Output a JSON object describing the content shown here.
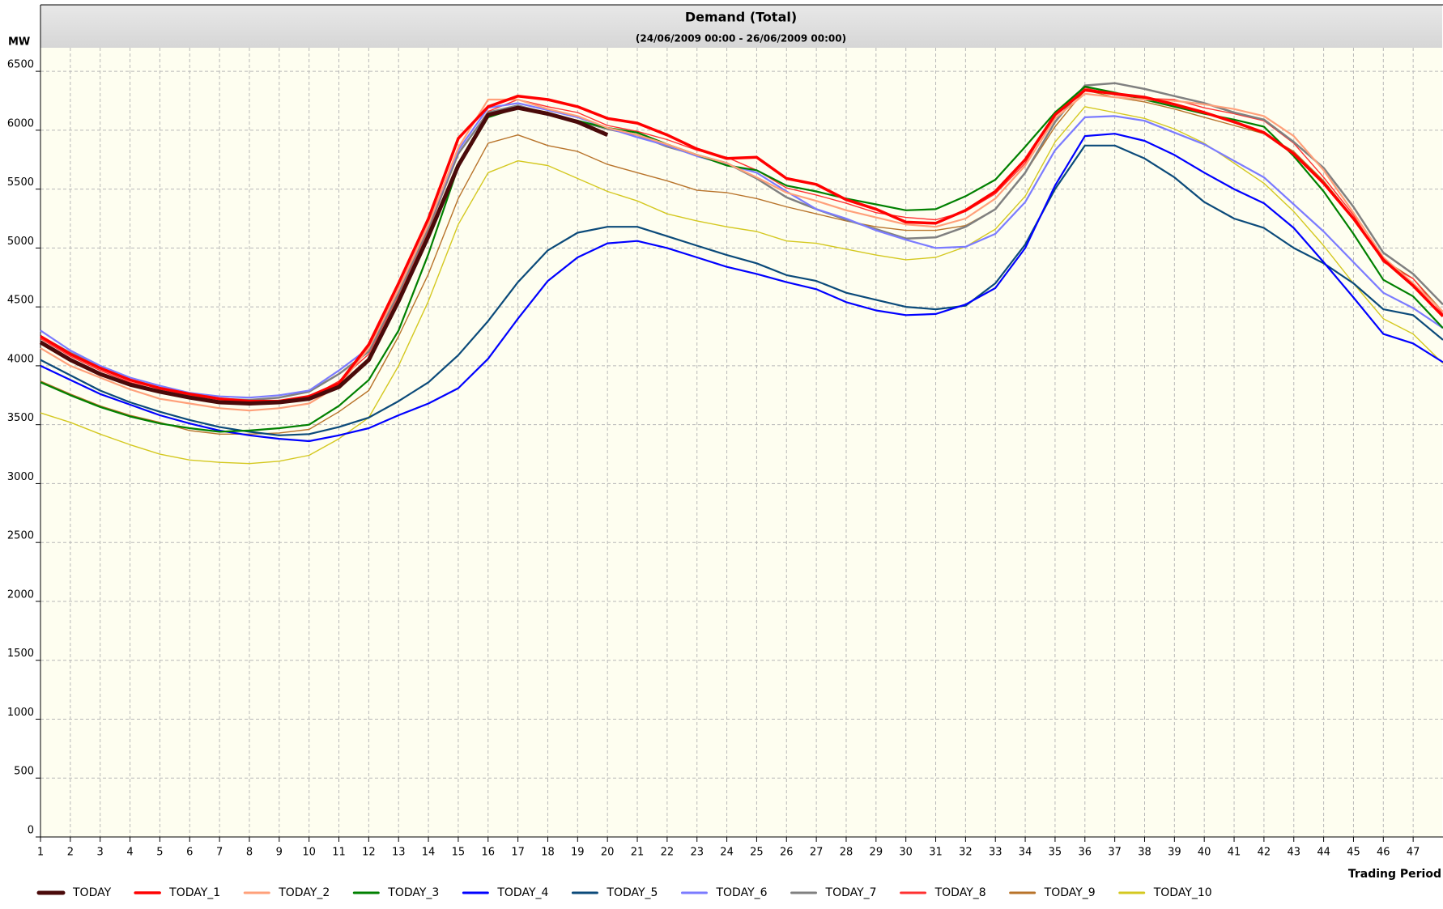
{
  "chart_data": {
    "type": "line",
    "title": "Demand (Total)",
    "subtitle": "(24/06/2009 00:00 - 26/06/2009 00:00)",
    "y_label": "MW",
    "x_label": "Trading Period",
    "x": [
      1,
      2,
      3,
      4,
      5,
      6,
      7,
      8,
      9,
      10,
      11,
      12,
      13,
      14,
      15,
      16,
      17,
      18,
      19,
      20,
      21,
      22,
      23,
      24,
      25,
      26,
      27,
      28,
      29,
      30,
      31,
      32,
      33,
      34,
      35,
      36,
      37,
      38,
      39,
      40,
      41,
      42,
      43,
      44,
      45,
      46,
      47,
      48
    ],
    "xlim": [
      1,
      48
    ],
    "xticks": [
      1,
      2,
      3,
      4,
      5,
      6,
      7,
      8,
      9,
      10,
      11,
      12,
      13,
      14,
      15,
      16,
      17,
      18,
      19,
      20,
      21,
      22,
      23,
      24,
      25,
      26,
      27,
      28,
      29,
      30,
      31,
      32,
      33,
      34,
      35,
      36,
      37,
      38,
      39,
      40,
      41,
      42,
      43,
      44,
      45,
      46,
      47
    ],
    "ylim": [
      0,
      6700
    ],
    "yticks": [
      0,
      500,
      1000,
      1500,
      2000,
      2500,
      3000,
      3500,
      4000,
      4500,
      5000,
      5500,
      6000,
      6500
    ],
    "grid": true,
    "series": [
      {
        "name": "TODAY",
        "color": "#4a0a0a",
        "line_width": 5,
        "values": [
          4200,
          4050,
          3930,
          3840,
          3780,
          3730,
          3690,
          3680,
          3690,
          3720,
          3820,
          4050,
          4550,
          5100,
          5700,
          6130,
          6190,
          6140,
          6070,
          5960,
          null,
          null,
          null,
          null,
          null,
          null,
          null,
          null,
          null,
          null,
          null,
          null,
          null,
          null,
          null,
          null,
          null,
          null,
          null,
          null,
          null,
          null,
          null,
          null,
          null,
          null,
          null,
          null
        ]
      },
      {
        "name": "TODAY_1",
        "color": "#ff0000",
        "line_width": 3.5,
        "values": [
          4250,
          4100,
          3980,
          3880,
          3810,
          3760,
          3720,
          3700,
          3700,
          3740,
          3850,
          4180,
          4700,
          5250,
          5930,
          6200,
          6290,
          6260,
          6200,
          6100,
          6060,
          5960,
          5840,
          5760,
          5770,
          5590,
          5540,
          5410,
          5330,
          5220,
          5210,
          5320,
          5480,
          5750,
          6130,
          6340,
          6310,
          6280,
          6220,
          6150,
          6070,
          5980,
          5800,
          5550,
          5250,
          4900,
          4680,
          4420
        ]
      },
      {
        "name": "TODAY_2",
        "color": "#ffa07a",
        "line_width": 2.2,
        "values": [
          4150,
          4000,
          3900,
          3800,
          3720,
          3680,
          3640,
          3620,
          3640,
          3680,
          3830,
          4150,
          4650,
          5200,
          5850,
          6260,
          6260,
          6180,
          6120,
          6020,
          5960,
          5880,
          5790,
          5720,
          5600,
          5470,
          5400,
          5320,
          5260,
          5200,
          5180,
          5250,
          5420,
          5700,
          6100,
          6310,
          6280,
          6260,
          6250,
          6220,
          6180,
          6120,
          5950,
          5660,
          5300,
          4920,
          4700,
          4460
        ]
      },
      {
        "name": "TODAY_3",
        "color": "#008000",
        "line_width": 2.2,
        "values": [
          3860,
          3750,
          3650,
          3570,
          3510,
          3470,
          3440,
          3450,
          3470,
          3500,
          3660,
          3880,
          4300,
          4950,
          5690,
          6110,
          6190,
          6130,
          6080,
          6020,
          5980,
          5880,
          5790,
          5700,
          5660,
          5530,
          5480,
          5420,
          5370,
          5320,
          5330,
          5440,
          5580,
          5860,
          6150,
          6370,
          6320,
          6260,
          6200,
          6140,
          6090,
          6030,
          5780,
          5480,
          5120,
          4730,
          4590,
          4320
        ]
      },
      {
        "name": "TODAY_4",
        "color": "#0000ff",
        "line_width": 2.2,
        "values": [
          4000,
          3880,
          3760,
          3670,
          3580,
          3510,
          3450,
          3410,
          3380,
          3360,
          3410,
          3470,
          3580,
          3680,
          3810,
          4060,
          4400,
          4720,
          4920,
          5040,
          5060,
          5000,
          4920,
          4840,
          4780,
          4710,
          4650,
          4540,
          4470,
          4430,
          4440,
          4520,
          4660,
          5000,
          5530,
          5950,
          5970,
          5910,
          5790,
          5640,
          5500,
          5380,
          5170,
          4880,
          4580,
          4270,
          4190,
          4030
        ]
      },
      {
        "name": "TODAY_5",
        "color": "#0b4a7a",
        "line_width": 2.2,
        "values": [
          4050,
          3920,
          3790,
          3690,
          3610,
          3540,
          3480,
          3440,
          3410,
          3420,
          3480,
          3560,
          3700,
          3860,
          4090,
          4380,
          4710,
          4980,
          5130,
          5180,
          5180,
          5100,
          5020,
          4940,
          4870,
          4770,
          4720,
          4620,
          4560,
          4500,
          4480,
          4510,
          4700,
          5030,
          5500,
          5870,
          5870,
          5760,
          5600,
          5390,
          5250,
          5170,
          5000,
          4870,
          4700,
          4480,
          4430,
          4220
        ]
      },
      {
        "name": "TODAY_6",
        "color": "#7b7bff",
        "line_width": 2.2,
        "values": [
          4300,
          4130,
          4000,
          3900,
          3830,
          3770,
          3740,
          3730,
          3750,
          3790,
          3960,
          4150,
          4650,
          5200,
          5830,
          6190,
          6230,
          6170,
          6110,
          6020,
          5940,
          5870,
          5780,
          5710,
          5640,
          5480,
          5330,
          5250,
          5150,
          5070,
          5000,
          5010,
          5120,
          5390,
          5830,
          6110,
          6120,
          6080,
          5980,
          5880,
          5740,
          5600,
          5370,
          5140,
          4880,
          4620,
          4490,
          4320
        ]
      },
      {
        "name": "TODAY_7",
        "color": "#808080",
        "line_width": 2.5,
        "values": [
          4250,
          4110,
          3990,
          3880,
          3810,
          3750,
          3720,
          3710,
          3730,
          3780,
          3930,
          4120,
          4620,
          5170,
          5800,
          6150,
          6210,
          6140,
          6080,
          6010,
          5960,
          5860,
          5790,
          5720,
          5590,
          5430,
          5330,
          5240,
          5160,
          5080,
          5090,
          5180,
          5330,
          5640,
          6070,
          6380,
          6400,
          6350,
          6290,
          6230,
          6150,
          6090,
          5900,
          5680,
          5350,
          4960,
          4780,
          4520
        ]
      },
      {
        "name": "TODAY_8",
        "color": "#ff3030",
        "line_width": 1.4,
        "values": [
          4230,
          4080,
          3960,
          3860,
          3790,
          3730,
          3700,
          3690,
          3700,
          3730,
          3870,
          4100,
          4600,
          5150,
          5800,
          6160,
          6260,
          6200,
          6150,
          6040,
          5990,
          5920,
          5830,
          5770,
          5660,
          5510,
          5450,
          5380,
          5300,
          5260,
          5240,
          5310,
          5460,
          5720,
          6150,
          6360,
          6300,
          6270,
          6260,
          6190,
          6140,
          6080,
          5890,
          5600,
          5280,
          4880,
          4740,
          4440
        ]
      },
      {
        "name": "TODAY_9",
        "color": "#b8732a",
        "line_width": 1.4,
        "values": [
          3870,
          3760,
          3660,
          3580,
          3520,
          3450,
          3420,
          3420,
          3430,
          3460,
          3610,
          3790,
          4250,
          4780,
          5420,
          5890,
          5960,
          5870,
          5820,
          5710,
          5640,
          5570,
          5490,
          5470,
          5420,
          5350,
          5290,
          5230,
          5180,
          5150,
          5150,
          5190,
          5330,
          5640,
          6030,
          6340,
          6280,
          6240,
          6180,
          6110,
          6040,
          5970,
          5820,
          5570,
          5260,
          4900,
          4740,
          4460
        ]
      },
      {
        "name": "TODAY_10",
        "color": "#d4c820",
        "line_width": 1.4,
        "values": [
          3600,
          3520,
          3420,
          3330,
          3250,
          3200,
          3180,
          3170,
          3190,
          3240,
          3380,
          3560,
          4000,
          4550,
          5200,
          5640,
          5740,
          5700,
          5590,
          5480,
          5400,
          5290,
          5230,
          5180,
          5140,
          5060,
          5040,
          4990,
          4940,
          4900,
          4920,
          5010,
          5160,
          5440,
          5900,
          6200,
          6150,
          6100,
          6010,
          5890,
          5720,
          5550,
          5310,
          5020,
          4700,
          4400,
          4270,
          4020
        ]
      }
    ]
  }
}
